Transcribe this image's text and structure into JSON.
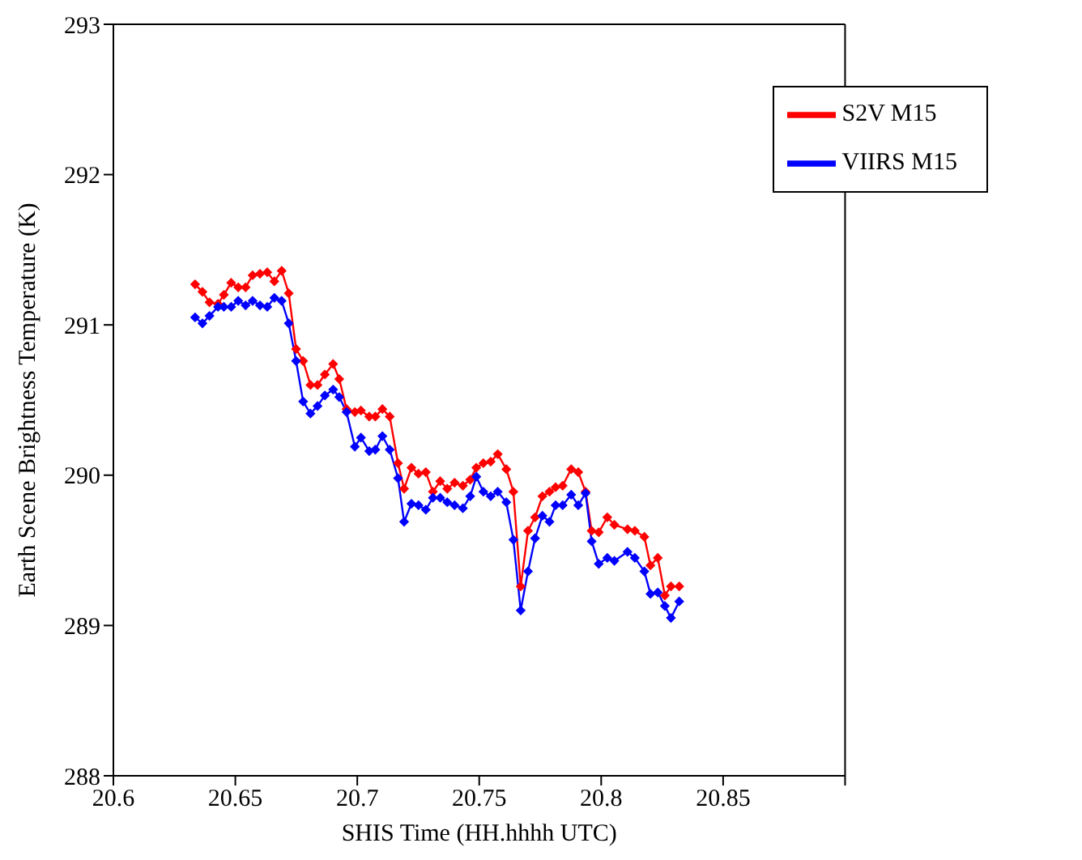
{
  "chart_data": {
    "type": "line",
    "xlabel": "SHIS Time (HH.hhhh UTC)",
    "ylabel": "Earth Scene Brightness Temperature (K)",
    "x": [
      20.6335,
      20.6365,
      20.6394,
      20.6429,
      20.6453,
      20.6483,
      20.6512,
      20.6542,
      20.6571,
      20.6601,
      20.6631,
      20.666,
      20.669,
      20.6719,
      20.6749,
      20.6778,
      20.6808,
      20.6837,
      20.6867,
      20.6901,
      20.6926,
      20.6956,
      20.699,
      20.7015,
      20.7049,
      20.7074,
      20.7103,
      20.7133,
      20.7167,
      20.7192,
      20.7222,
      20.7251,
      20.7281,
      20.731,
      20.734,
      20.7369,
      20.7399,
      20.7433,
      20.7463,
      20.7488,
      20.7517,
      20.7547,
      20.7576,
      20.7611,
      20.764,
      20.767,
      20.77,
      20.7729,
      20.7759,
      20.7788,
      20.7813,
      20.7842,
      20.7877,
      20.7906,
      20.7936,
      20.7961,
      20.799,
      20.8025,
      20.8054,
      20.8108,
      20.8138,
      20.8177,
      20.8202,
      20.8232,
      20.8261,
      20.8286,
      20.832
    ],
    "series": [
      {
        "name": "S2V M15",
        "color": "#ff0000",
        "values": [
          291.27,
          291.22,
          291.15,
          291.14,
          291.2,
          291.28,
          291.25,
          291.25,
          291.33,
          291.34,
          291.35,
          291.29,
          291.36,
          291.21,
          290.84,
          290.76,
          290.6,
          290.6,
          290.67,
          290.74,
          290.64,
          290.44,
          290.42,
          290.43,
          290.39,
          290.39,
          290.44,
          290.39,
          290.08,
          289.91,
          290.05,
          290.01,
          290.02,
          289.89,
          289.96,
          289.91,
          289.95,
          289.93,
          289.97,
          290.05,
          290.08,
          290.09,
          290.14,
          290.04,
          289.89,
          289.26,
          289.63,
          289.72,
          289.86,
          289.89,
          289.92,
          289.93,
          290.04,
          290.02,
          289.89,
          289.63,
          289.62,
          289.72,
          289.67,
          289.64,
          289.63,
          289.59,
          289.4,
          289.45,
          289.2,
          289.26,
          289.26
        ]
      },
      {
        "name": "VIIRS M15",
        "color": "#0000ff",
        "values": [
          291.05,
          291.01,
          291.06,
          291.12,
          291.12,
          291.12,
          291.16,
          291.13,
          291.16,
          291.13,
          291.12,
          291.18,
          291.16,
          291.01,
          290.76,
          290.49,
          290.41,
          290.46,
          290.53,
          290.57,
          290.52,
          290.42,
          290.19,
          290.25,
          290.16,
          290.17,
          290.26,
          290.17,
          289.98,
          289.69,
          289.81,
          289.8,
          289.77,
          289.85,
          289.85,
          289.82,
          289.8,
          289.78,
          289.86,
          289.99,
          289.89,
          289.86,
          289.89,
          289.82,
          289.57,
          289.1,
          289.36,
          289.58,
          289.73,
          289.69,
          289.8,
          289.8,
          289.87,
          289.8,
          289.88,
          289.56,
          289.41,
          289.45,
          289.43,
          289.49,
          289.45,
          289.36,
          289.21,
          289.22,
          289.13,
          289.05,
          289.16
        ]
      }
    ],
    "xlim": [
      20.6,
      20.9
    ],
    "xticks": [
      20.6,
      20.65,
      20.7,
      20.75,
      20.8,
      20.85,
      {
        "value": 20.9,
        "label": null
      }
    ],
    "ylim": [
      288,
      293
    ],
    "yticks": [
      288,
      289,
      290,
      291,
      292,
      293
    ],
    "legend": "top right",
    "marker": "diamond",
    "line_style": "solid"
  }
}
